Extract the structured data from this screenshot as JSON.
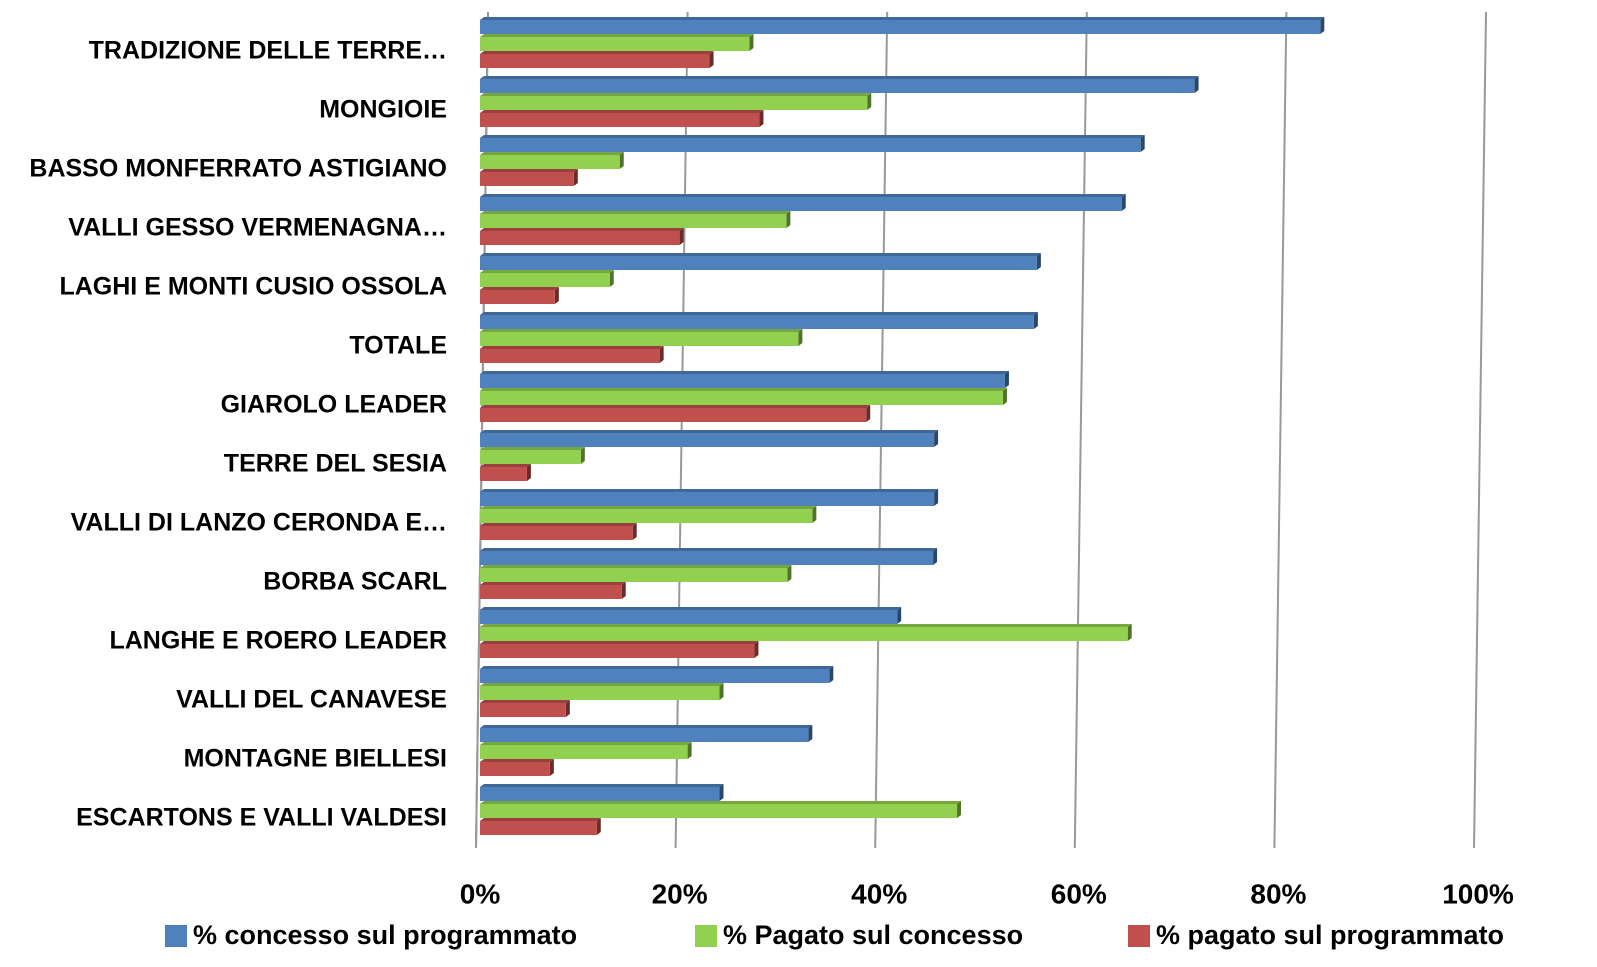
{
  "chart_data": {
    "type": "bar",
    "orientation": "horizontal",
    "categories": [
      "TRADIZIONE DELLE TERRE…",
      "MONGIOIE",
      "BASSO MONFERRATO ASTIGIANO",
      "VALLI GESSO VERMENAGNA…",
      "LAGHI E MONTI CUSIO OSSOLA",
      "TOTALE",
      "GIAROLO LEADER",
      "TERRE DEL SESIA",
      "VALLI DI LANZO CERONDA E…",
      "BORBA SCARL",
      "LANGHE E ROERO LEADER",
      "VALLI DEL CANAVESE",
      "MONTAGNE BIELLESI",
      "ESCARTONS E VALLI VALDESI"
    ],
    "series": [
      {
        "name": "% concesso  sul programmato",
        "color": "#4f81bd",
        "values": [
          84.2,
          71.6,
          66.2,
          64.3,
          55.8,
          55.5,
          52.6,
          45.5,
          45.5,
          45.4,
          41.8,
          35,
          32.9,
          24
        ]
      },
      {
        "name": "%  Pagato sul concesso",
        "color": "#92d050",
        "values": [
          27,
          38.8,
          14,
          30.7,
          13,
          31.9,
          52.4,
          10.1,
          33.3,
          30.8,
          64.9,
          24,
          20.8,
          47.8
        ]
      },
      {
        "name": "% pagato sul programmato",
        "color": "#c0504d",
        "values": [
          23,
          28,
          9.4,
          20,
          7.5,
          18,
          38.7,
          4.7,
          15.3,
          14.2,
          27.5,
          8.6,
          7,
          11.7
        ]
      }
    ],
    "xlim": [
      0,
      100
    ],
    "xticks": [
      {
        "value": 0,
        "label": "0%"
      },
      {
        "value": 20,
        "label": "20%"
      },
      {
        "value": 40,
        "label": "40%"
      },
      {
        "value": 60,
        "label": "60%"
      },
      {
        "value": 80,
        "label": "80%"
      },
      {
        "value": 100,
        "label": "100%"
      }
    ],
    "grid": true,
    "legend": "bottom"
  }
}
